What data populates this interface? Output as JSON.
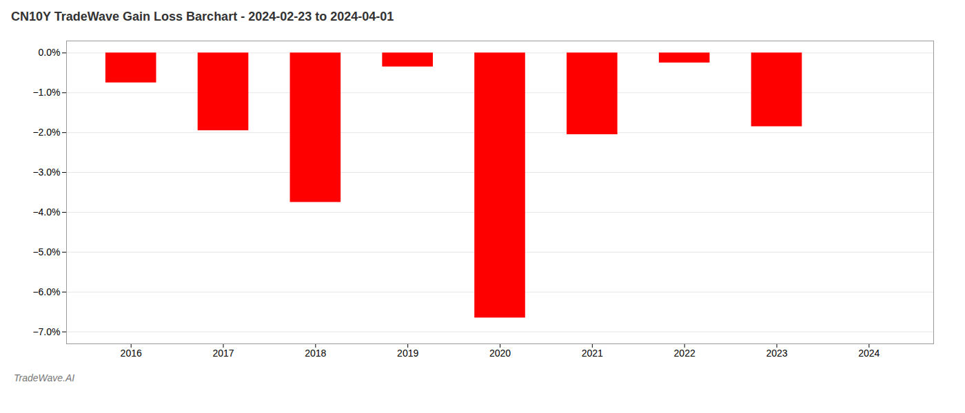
{
  "chart_data": {
    "type": "bar",
    "title": "CN10Y TradeWave Gain Loss Barchart - 2024-02-23 to 2024-04-01",
    "annotations": [
      "TradeWave.AI"
    ],
    "x": [
      2016,
      2017,
      2018,
      2019,
      2020,
      2021,
      2022,
      2023
    ],
    "values": [
      -0.75,
      -1.95,
      -3.75,
      -0.35,
      -6.65,
      -2.05,
      -0.25,
      -1.85
    ],
    "color": "#ff0000",
    "xlim": [
      2015.3,
      2024.7
    ],
    "xticks": [
      2016,
      2017,
      2018,
      2019,
      2020,
      2021,
      2022,
      2023,
      2024
    ],
    "ylim": [
      -7.3,
      0.3
    ],
    "yticks": [
      {
        "value": 0.0,
        "label": "0.0%"
      },
      {
        "value": -1.0,
        "label": "−1.0%"
      },
      {
        "value": -2.0,
        "label": "−2.0%"
      },
      {
        "value": -3.0,
        "label": "−3.0%"
      },
      {
        "value": -4.0,
        "label": "−4.0%"
      },
      {
        "value": -5.0,
        "label": "−5.0%"
      },
      {
        "value": -6.0,
        "label": "−6.0%"
      },
      {
        "value": -7.0,
        "label": "−7.0%"
      }
    ],
    "grid": true
  }
}
